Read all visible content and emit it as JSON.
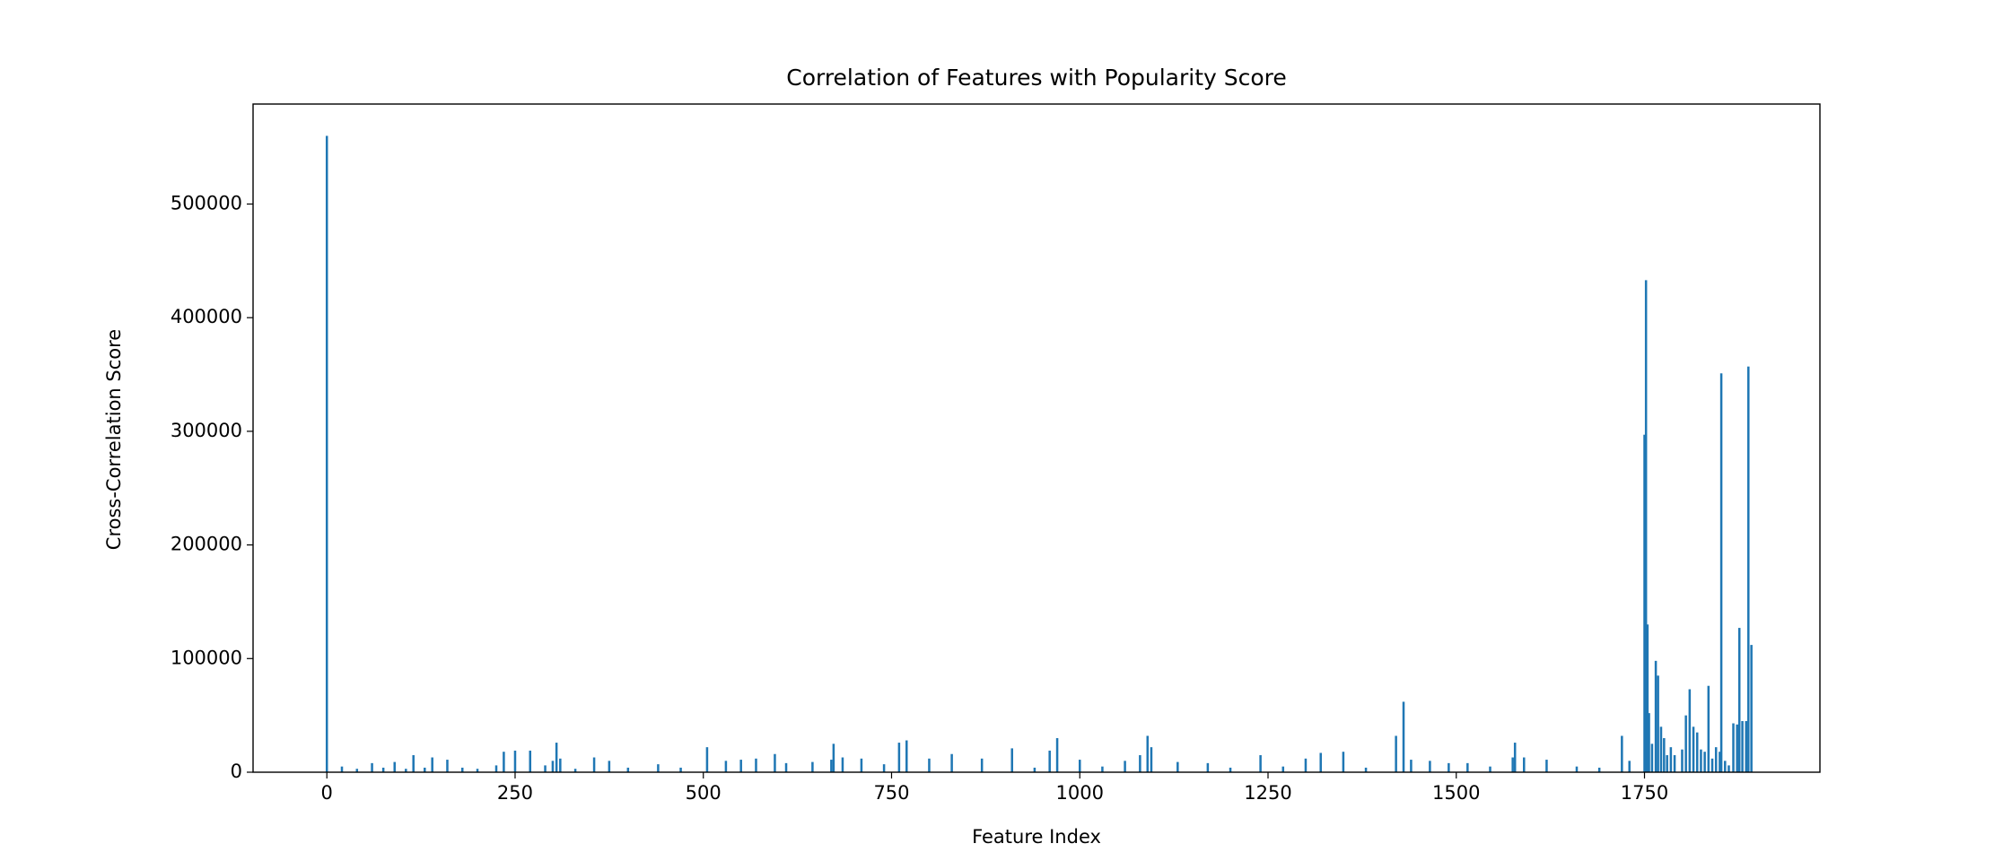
{
  "chart_data": {
    "type": "bar",
    "title": "Correlation of Features with Popularity Score",
    "x_label": "Feature Index",
    "y_label": "Cross-Correlation Score",
    "color": "#1f77b4",
    "xlim": [
      -98,
      1983
    ],
    "ylim": [
      0,
      588000
    ],
    "xticks": [
      0,
      250,
      500,
      750,
      1000,
      1250,
      1500,
      1750
    ],
    "yticks": [
      0,
      100000,
      200000,
      300000,
      400000,
      500000
    ],
    "x": [
      0,
      20,
      40,
      60,
      75,
      90,
      105,
      115,
      130,
      140,
      160,
      180,
      200,
      225,
      235,
      250,
      270,
      290,
      300,
      305,
      310,
      330,
      355,
      375,
      400,
      440,
      470,
      505,
      530,
      550,
      570,
      595,
      610,
      645,
      670,
      673,
      685,
      710,
      740,
      760,
      770,
      800,
      830,
      870,
      910,
      940,
      960,
      970,
      1000,
      1030,
      1060,
      1080,
      1090,
      1095,
      1130,
      1170,
      1200,
      1240,
      1270,
      1300,
      1320,
      1350,
      1380,
      1420,
      1430,
      1440,
      1465,
      1490,
      1515,
      1545,
      1575,
      1578,
      1590,
      1620,
      1660,
      1690,
      1720,
      1730,
      1750,
      1752,
      1754,
      1756,
      1760,
      1765,
      1768,
      1772,
      1776,
      1780,
      1785,
      1790,
      1800,
      1805,
      1810,
      1815,
      1820,
      1825,
      1830,
      1835,
      1840,
      1845,
      1850,
      1852,
      1857,
      1862,
      1868,
      1873,
      1876,
      1880,
      1885,
      1888,
      1892
    ],
    "values": [
      560000,
      5000,
      3000,
      8000,
      4000,
      9000,
      3000,
      15000,
      4000,
      13000,
      11000,
      4000,
      3000,
      6000,
      18000,
      19000,
      19000,
      6000,
      10000,
      26000,
      12000,
      3000,
      13000,
      10000,
      4000,
      7000,
      4000,
      22000,
      10000,
      11000,
      12000,
      16000,
      8000,
      9000,
      11000,
      25000,
      13000,
      12000,
      7000,
      26000,
      28000,
      12000,
      16000,
      12000,
      21000,
      4000,
      19000,
      30000,
      11000,
      5000,
      10000,
      15000,
      32000,
      22000,
      9000,
      8000,
      4000,
      15000,
      5000,
      12000,
      17000,
      18000,
      4000,
      32000,
      62000,
      11000,
      10000,
      8000,
      8000,
      5000,
      13000,
      26000,
      13000,
      11000,
      5000,
      4000,
      32000,
      10000,
      297000,
      433000,
      130000,
      52000,
      25000,
      98000,
      85000,
      40000,
      30000,
      15000,
      22000,
      15000,
      20000,
      50000,
      73000,
      40000,
      35000,
      20000,
      18000,
      76000,
      12000,
      22000,
      18000,
      351000,
      10000,
      6000,
      43000,
      42000,
      127000,
      45000,
      45000,
      357000,
      112000
    ]
  }
}
